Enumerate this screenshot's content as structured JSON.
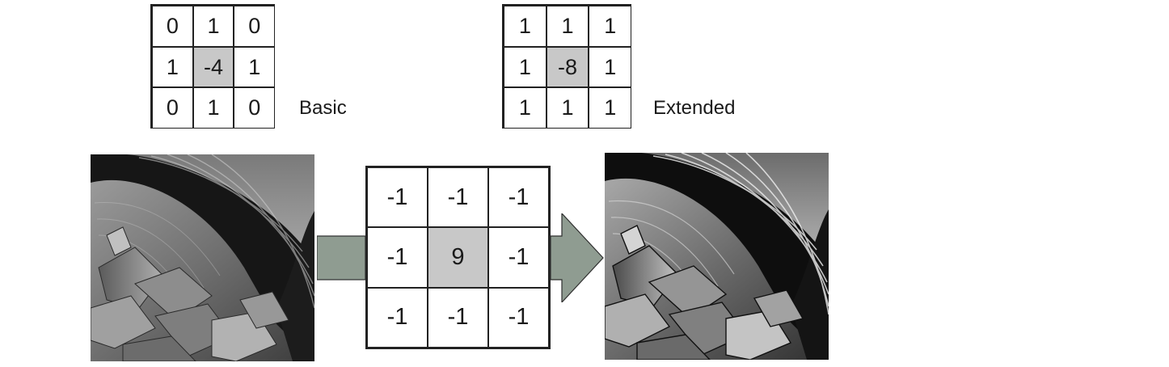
{
  "kernels": {
    "basic": {
      "caption": "Basic",
      "rows": [
        [
          "0",
          "1",
          "0"
        ],
        [
          "1",
          "-4",
          "1"
        ],
        [
          "0",
          "1",
          "0"
        ]
      ]
    },
    "extended": {
      "caption": "Extended",
      "rows": [
        [
          "1",
          "1",
          "1"
        ],
        [
          "1",
          "-8",
          "1"
        ],
        [
          "1",
          "1",
          "1"
        ]
      ]
    },
    "sharpen": {
      "rows": [
        [
          "-1",
          "-1",
          "-1"
        ],
        [
          "-1",
          "9",
          "-1"
        ],
        [
          "-1",
          "-1",
          "-1"
        ]
      ]
    }
  },
  "colors": {
    "arrow_fill": "#8f9c91",
    "grid_line": "#222222",
    "center_cell": "#c8c8c8"
  },
  "images": {
    "left": "grayscale-sem-micrograph",
    "right": "sharpened-grayscale-sem-micrograph"
  }
}
